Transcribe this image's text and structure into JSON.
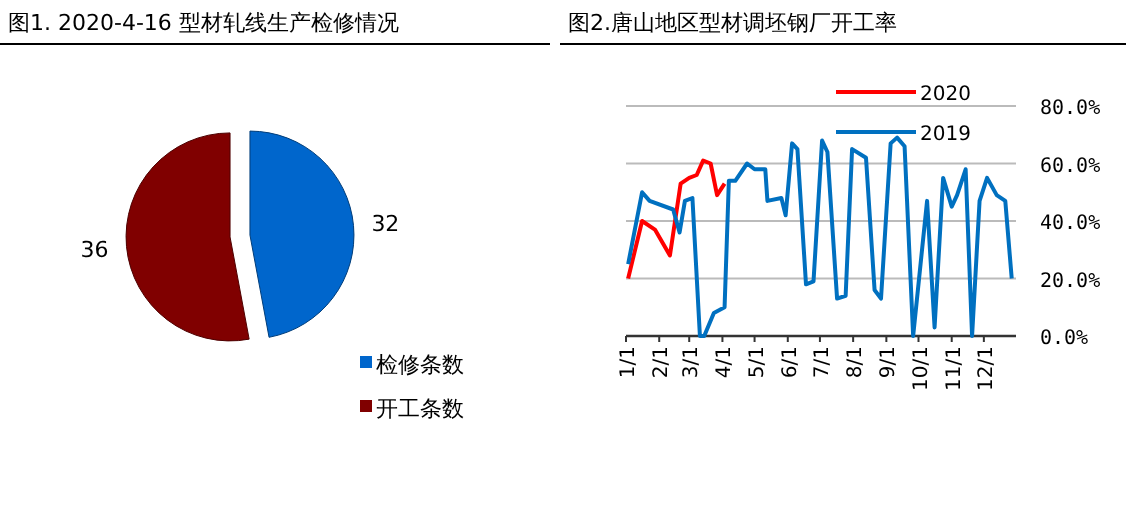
{
  "chart_data": [
    {
      "type": "pie",
      "title": "图1. 2020-4-16 型材轧线生产检修情况",
      "categories": [
        "检修条数",
        "开工条数"
      ],
      "values": [
        32,
        36
      ],
      "colors": [
        "#0066cc",
        "#800000"
      ],
      "data_labels": true,
      "legend": "bottom right"
    },
    {
      "type": "line",
      "title": "图2.唐山地区型材调坯钢厂开工率",
      "legend": "top right",
      "grid": "y",
      "xlim": [
        "--01-01",
        "--12-31"
      ],
      "xticks": [
        {
          "value": "--01-01",
          "label": "1/1"
        },
        {
          "value": "--02-01",
          "label": "2/1"
        },
        {
          "value": "--03-01",
          "label": "3/1"
        },
        {
          "value": "--04-01",
          "label": "4/1"
        },
        {
          "value": "--05-01",
          "label": "5/1"
        },
        {
          "value": "--06-01",
          "label": "6/1"
        },
        {
          "value": "--07-01",
          "label": "7/1"
        },
        {
          "value": "--08-01",
          "label": "8/1"
        },
        {
          "value": "--09-01",
          "label": "9/1"
        },
        {
          "value": "--10-01",
          "label": "10/1"
        },
        {
          "value": "--11-01",
          "label": "11/1"
        },
        {
          "value": "--12-01",
          "label": "12/1"
        }
      ],
      "ylim": [
        0,
        80
      ],
      "yticks": [
        {
          "value": 0,
          "label": "0.0%"
        },
        {
          "value": 20,
          "label": "20.0%"
        },
        {
          "value": 40,
          "label": "40.0%"
        },
        {
          "value": 60,
          "label": "60.0%"
        },
        {
          "value": 80,
          "label": "80.0%"
        }
      ],
      "series": [
        {
          "name": "2020",
          "color": "#ff0000",
          "x": [
            "--01-03",
            "--01-16",
            "--01-28",
            "--02-11",
            "--02-21",
            "--03-01",
            "--03-08",
            "--03-14",
            "--03-21",
            "--03-27",
            "--04-03"
          ],
          "values": [
            20,
            40,
            37,
            28,
            53,
            55,
            56,
            61,
            60,
            49,
            53
          ]
        },
        {
          "name": "2019",
          "color": "#0070c0",
          "x": [
            "--01-03",
            "--01-16",
            "--01-23",
            "--02-14",
            "--02-20",
            "--02-25",
            "--03-04",
            "--03-11",
            "--03-15",
            "--03-24",
            "--04-03",
            "--04-07",
            "--04-13",
            "--04-24",
            "--05-01",
            "--05-11",
            "--05-13",
            "--05-26",
            "--05-30",
            "--06-05",
            "--06-10",
            "--06-18",
            "--06-25",
            "--07-03",
            "--07-08",
            "--07-17",
            "--07-25",
            "--07-31",
            "--08-13",
            "--08-21",
            "--08-27",
            "--09-05",
            "--09-11",
            "--09-18",
            "--09-26",
            "--10-09",
            "--10-16",
            "--10-24",
            "--11-01",
            "--11-06",
            "--11-14",
            "--11-20",
            "--11-27",
            "--12-04",
            "--12-13",
            "--12-21",
            "--12-27"
          ],
          "values": [
            25,
            50,
            47,
            44,
            36,
            47,
            48,
            0,
            0,
            8,
            10,
            54,
            54,
            60,
            58,
            58,
            47,
            48,
            42,
            67,
            65,
            18,
            19,
            68,
            64,
            13,
            14,
            65,
            62,
            16,
            13,
            67,
            69,
            66,
            0,
            47,
            3,
            55,
            45,
            49,
            58,
            0,
            47,
            55,
            49,
            47,
            20
          ]
        }
      ]
    }
  ]
}
